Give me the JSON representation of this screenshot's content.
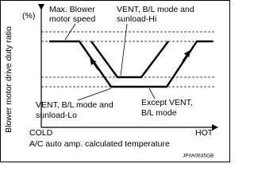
{
  "axes": {
    "y_label": "Blower motor drive duty ratio",
    "y_unit": "(%)",
    "x_start": "COLD",
    "x_end": "HOT",
    "x_label": "A/C auto amp. calculated temperature"
  },
  "annotations": {
    "max_speed": [
      "Max. Blower",
      "motor speed"
    ],
    "vent_hi": [
      "VENT, B/L mode and",
      "sunload-Hi"
    ],
    "vent_lo": [
      "VENT, B/L mode and",
      "sunload-Lo"
    ],
    "except_vent": [
      "Except VENT,",
      "B/L mode"
    ]
  },
  "figure_code": "JPIIA0635GB"
}
